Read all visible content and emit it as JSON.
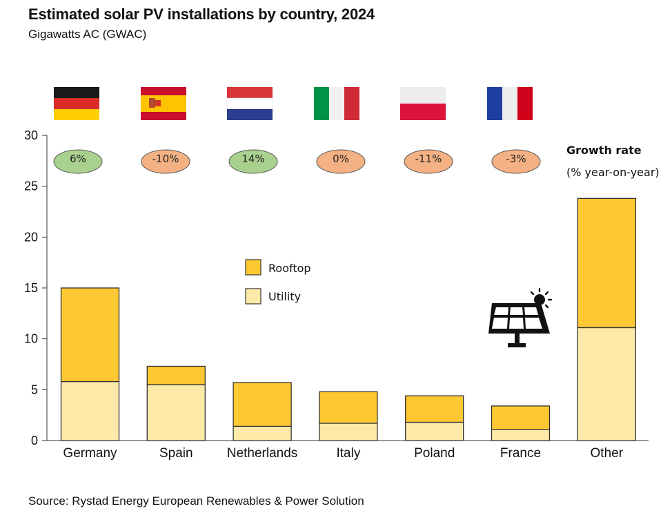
{
  "header": {
    "title": "Estimated solar PV installations by country, 2024",
    "subtitle": "Gigawatts AC (GWAC)"
  },
  "footer": {
    "source": "Source: Rystad Energy European Renewables & Power Solution"
  },
  "growth_label": {
    "title": "Growth rate",
    "subtitle": "(% year-on-year)"
  },
  "colors": {
    "rooftop": "#FDC832",
    "utility": "#FDEAA9",
    "bar_border": "#333333",
    "positive_growth": "#A9D18E",
    "negative_growth": "#F4B183"
  },
  "icons": {
    "solar_panel": "solar-panel-sun-icon",
    "flags": [
      "germany-flag-icon",
      "spain-flag-icon",
      "netherlands-flag-icon",
      "italy-flag-icon",
      "poland-flag-icon",
      "france-flag-icon"
    ]
  },
  "chart_data": {
    "type": "bar",
    "stacked": true,
    "categories": [
      "Germany",
      "Spain",
      "Netherlands",
      "Italy",
      "Poland",
      "France",
      "Other"
    ],
    "series": [
      {
        "name": "Utility",
        "values": [
          5.8,
          5.5,
          1.4,
          1.7,
          1.8,
          1.1,
          11.1
        ]
      },
      {
        "name": "Rooftop",
        "values": [
          9.2,
          1.8,
          4.3,
          3.1,
          2.6,
          2.3,
          12.7
        ]
      }
    ],
    "growth_rates": [
      "6%",
      "-10%",
      "14%",
      "0%",
      "-11%",
      "-3%"
    ],
    "growth_positive": [
      true,
      false,
      true,
      false,
      false,
      false
    ],
    "legend": [
      "Rooftop",
      "Utility"
    ],
    "legend_position": "center-left",
    "ylim": [
      0,
      30
    ],
    "yticks": [
      "0",
      "5",
      "10",
      "15",
      "20",
      "25",
      "30"
    ],
    "grid": false,
    "xlabel": "",
    "ylabel": ""
  }
}
